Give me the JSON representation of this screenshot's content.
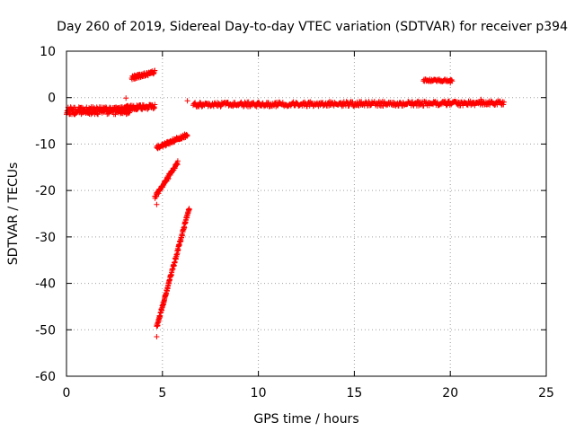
{
  "chart_data": {
    "type": "scatter",
    "title": "Day 260 of 2019, Sidereal Day-to-day VTEC variation (SDTVAR) for receiver p394",
    "xlabel": "GPS time / hours",
    "ylabel": "SDTVAR / TECUs",
    "xlim": [
      0,
      25
    ],
    "ylim": [
      -60,
      10
    ],
    "xticks": [
      0,
      5,
      10,
      15,
      20,
      25
    ],
    "yticks": [
      -60,
      -50,
      -40,
      -30,
      -20,
      -10,
      0,
      10
    ],
    "grid": true,
    "marker": "+",
    "series_color": "#ff0000",
    "segments": [
      {
        "name": "baseline-early",
        "x_start": 0.0,
        "x_end": 3.3,
        "y_start": -2.8,
        "y_end": -2.8,
        "noise": 0.8,
        "points": 200
      },
      {
        "name": "baseline-mid",
        "x_start": 3.0,
        "x_end": 4.6,
        "y_start": -2.2,
        "y_end": -2.0,
        "noise": 0.5,
        "points": 90
      },
      {
        "name": "upper-jump",
        "x_start": 3.4,
        "x_end": 4.6,
        "y_start": 4.3,
        "y_end": 5.5,
        "noise": 0.4,
        "points": 70
      },
      {
        "name": "ramp-a",
        "x_start": 4.7,
        "x_end": 6.3,
        "y_start": -10.8,
        "y_end": -8.0,
        "noise": 0.4,
        "points": 80
      },
      {
        "name": "ramp-b",
        "x_start": 4.6,
        "x_end": 5.8,
        "y_start": -21.5,
        "y_end": -14.0,
        "noise": 0.4,
        "points": 80
      },
      {
        "name": "ramp-c",
        "x_start": 4.7,
        "x_end": 6.4,
        "y_start": -49.5,
        "y_end": -23.8,
        "noise": 0.4,
        "points": 160
      },
      {
        "name": "baseline-late",
        "x_start": 6.6,
        "x_end": 22.8,
        "y_start": -1.5,
        "y_end": -1.2,
        "noise": 0.5,
        "points": 500
      },
      {
        "name": "upper-late",
        "x_start": 18.6,
        "x_end": 20.1,
        "y_start": 3.8,
        "y_end": 3.6,
        "noise": 0.3,
        "points": 50
      }
    ],
    "outliers": [
      {
        "x": 3.1,
        "y": -0.1
      },
      {
        "x": 4.7,
        "y": -23.0
      },
      {
        "x": 4.7,
        "y": -51.5
      },
      {
        "x": 6.3,
        "y": -0.7
      },
      {
        "x": 20.0,
        "y": 3.2
      },
      {
        "x": 21.6,
        "y": -0.4
      }
    ]
  }
}
